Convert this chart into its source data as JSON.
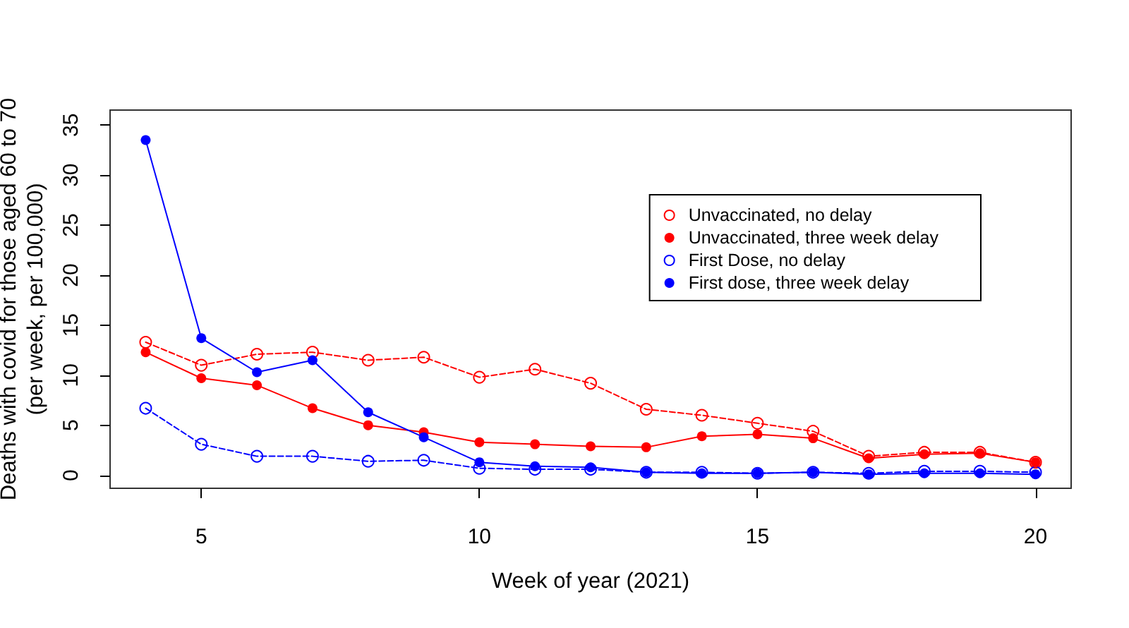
{
  "chart_data": {
    "type": "line",
    "xlabel": "Week of year (2021)",
    "ylabel": "Deaths with covid for those aged 60 to 70\n(per week, per 100,000)",
    "x": [
      4,
      5,
      6,
      7,
      8,
      9,
      10,
      11,
      12,
      13,
      14,
      15,
      16,
      17,
      18,
      19,
      20
    ],
    "series": [
      {
        "name": "Unvaccinated, no delay",
        "color": "#ff0000",
        "line_style": "dashed",
        "values": [
          13.3,
          11.0,
          12.1,
          12.3,
          11.5,
          11.8,
          9.8,
          10.6,
          9.2,
          6.6,
          6.0,
          5.2,
          4.4,
          1.9,
          2.3,
          2.3,
          1.3
        ]
      },
      {
        "name": "Unvaccinated, three week delay",
        "color": "#ff0000",
        "line_style": "solid",
        "values": [
          12.3,
          9.7,
          9.0,
          6.7,
          5.0,
          4.3,
          3.3,
          3.1,
          2.9,
          2.8,
          3.9,
          4.1,
          3.7,
          1.7,
          2.1,
          2.2,
          1.3
        ]
      },
      {
        "name": "First Dose, no delay",
        "color": "#0000ff",
        "line_style": "dashed",
        "values": [
          6.7,
          3.1,
          1.9,
          1.9,
          1.4,
          1.5,
          0.7,
          0.6,
          0.6,
          0.3,
          0.3,
          0.2,
          0.3,
          0.2,
          0.4,
          0.4,
          0.3
        ]
      },
      {
        "name": "First dose, three week delay",
        "color": "#0000ff",
        "line_style": "solid",
        "values": [
          33.5,
          13.7,
          10.3,
          11.5,
          6.3,
          3.8,
          1.3,
          0.9,
          0.8,
          0.3,
          0.2,
          0.2,
          0.3,
          0.1,
          0.2,
          0.2,
          0.1
        ]
      }
    ],
    "xlim": [
      3.36,
      20.64
    ],
    "xticks": [
      5,
      10,
      15,
      20
    ],
    "ylim": [
      -1.3,
      36.5
    ],
    "yticks": [
      0,
      5,
      10,
      15,
      20,
      25,
      30,
      35
    ],
    "marker": "circle",
    "legend": "top right"
  }
}
